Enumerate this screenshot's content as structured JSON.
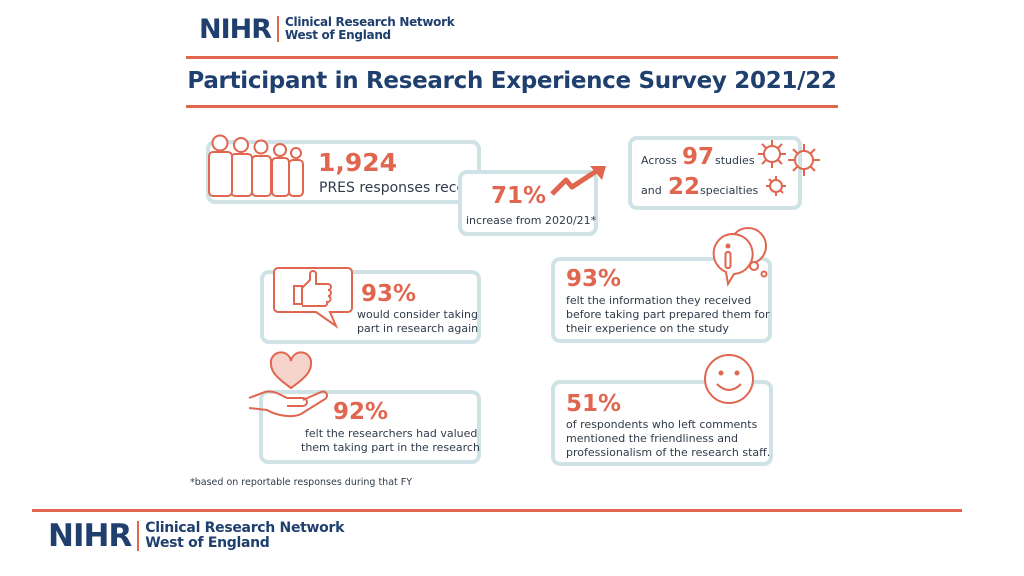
{
  "header": {
    "logo_wordmark": "NIHR",
    "org_line1": "Clinical Research Network",
    "org_line2": "West of England"
  },
  "title": "Participant in Research Experience Survey 2021/22",
  "stats": {
    "responses": {
      "value": "1,924",
      "label": "PRES responses received"
    },
    "increase": {
      "value": "71%",
      "label": "increase from 2020/21*"
    },
    "studies": {
      "prefix1": "Across",
      "studies_value": "97",
      "studies_label": "studies",
      "prefix2": "and",
      "specialties_value": "22",
      "specialties_label": "specialties"
    },
    "consider": {
      "value": "93%",
      "label_line1": "would consider taking",
      "label_line2": "part in research again"
    },
    "information": {
      "value": "93%",
      "label_line1": "felt the information they received",
      "label_line2": "before taking part prepared them for",
      "label_line3": "their experience on the study"
    },
    "valued": {
      "value": "92%",
      "label_line1": "felt the researchers had valued",
      "label_line2": "them taking part in the research"
    },
    "comments": {
      "value": "51%",
      "label_line1": "of respondents who left comments",
      "label_line2": "mentioned the friendliness and",
      "label_line3": "professionalism of the research staff."
    }
  },
  "footnote": "*based on reportable responses during that FY",
  "footer": {
    "logo_wordmark": "NIHR",
    "org_line1": "Clinical Research Network",
    "org_line2": "West of England"
  },
  "colors": {
    "accent": "#e0664f",
    "navy": "#1f3f6e",
    "card_border": "#cfe3e6"
  }
}
